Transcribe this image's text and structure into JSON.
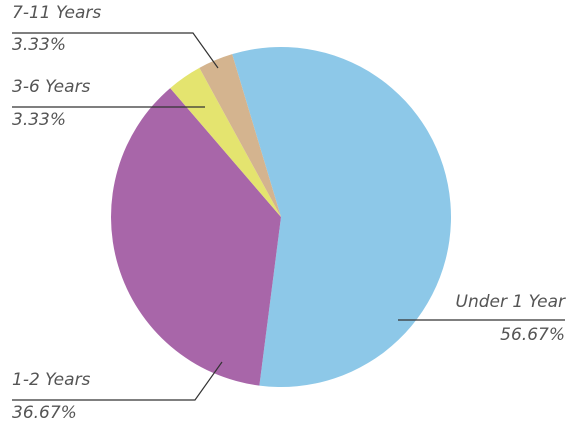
{
  "chart_data": {
    "type": "pie",
    "categories": [
      "Under 1 Year",
      "1-2 Years",
      "3-6 Years",
      "7-11 Years"
    ],
    "values": [
      56.67,
      36.67,
      3.33,
      3.33
    ],
    "value_labels": [
      "56.67%",
      "36.67%",
      "3.33%",
      "3.33%"
    ],
    "colors": [
      "#8dc8e8",
      "#a866a9",
      "#e4e46f",
      "#d4b48f"
    ]
  }
}
